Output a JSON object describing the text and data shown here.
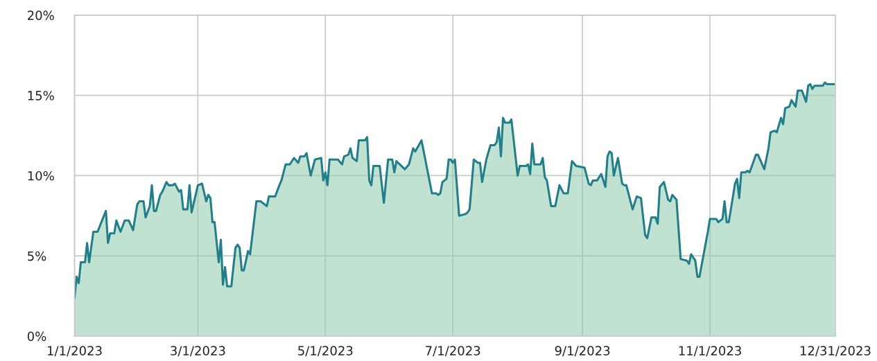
{
  "chart_data": {
    "type": "area",
    "x": [
      "2023-01-01",
      "2023-01-02",
      "2023-01-03",
      "2023-01-04",
      "2023-01-06",
      "2023-01-07",
      "2023-01-08",
      "2023-01-10",
      "2023-01-12",
      "2023-01-16",
      "2023-01-17",
      "2023-01-18",
      "2023-01-20",
      "2023-01-21",
      "2023-01-23",
      "2023-01-25",
      "2023-01-27",
      "2023-01-29",
      "2023-01-31",
      "2023-02-01",
      "2023-02-03",
      "2023-02-04",
      "2023-02-06",
      "2023-02-07",
      "2023-02-08",
      "2023-02-09",
      "2023-02-11",
      "2023-02-12",
      "2023-02-14",
      "2023-02-15",
      "2023-02-17",
      "2023-02-18",
      "2023-02-20",
      "2023-02-21",
      "2023-02-22",
      "2023-02-24",
      "2023-02-25",
      "2023-02-26",
      "2023-03-01",
      "2023-03-03",
      "2023-03-05",
      "2023-03-06",
      "2023-03-07",
      "2023-03-08",
      "2023-03-09",
      "2023-03-11",
      "2023-03-12",
      "2023-03-13",
      "2023-03-14",
      "2023-03-15",
      "2023-03-17",
      "2023-03-19",
      "2023-03-20",
      "2023-03-21",
      "2023-03-22",
      "2023-03-23",
      "2023-03-25",
      "2023-03-26",
      "2023-03-29",
      "2023-03-31",
      "2023-04-03",
      "2023-04-04",
      "2023-04-07",
      "2023-04-09",
      "2023-04-10",
      "2023-04-12",
      "2023-04-14",
      "2023-04-16",
      "2023-04-18",
      "2023-04-19",
      "2023-04-21",
      "2023-04-22",
      "2023-04-24",
      "2023-04-26",
      "2023-04-29",
      "2023-04-30",
      "2023-05-01",
      "2023-05-02",
      "2023-05-03",
      "2023-05-07",
      "2023-05-09",
      "2023-05-10",
      "2023-05-12",
      "2023-05-13",
      "2023-05-14",
      "2023-05-16",
      "2023-05-17",
      "2023-05-20",
      "2023-05-21",
      "2023-05-22",
      "2023-05-23",
      "2023-05-24",
      "2023-05-27",
      "2023-05-29",
      "2023-05-31",
      "2023-06-02",
      "2023-06-03",
      "2023-06-04",
      "2023-06-08",
      "2023-06-10",
      "2023-06-12",
      "2023-06-13",
      "2023-06-16",
      "2023-06-21",
      "2023-06-23",
      "2023-06-24",
      "2023-06-25",
      "2023-06-26",
      "2023-06-28",
      "2023-06-29",
      "2023-06-30",
      "2023-07-01",
      "2023-07-02",
      "2023-07-04",
      "2023-07-07",
      "2023-07-08",
      "2023-07-09",
      "2023-07-11",
      "2023-07-13",
      "2023-07-14",
      "2023-07-15",
      "2023-07-17",
      "2023-07-19",
      "2023-07-21",
      "2023-07-22",
      "2023-07-23",
      "2023-07-24",
      "2023-07-25",
      "2023-07-26",
      "2023-07-28",
      "2023-07-29",
      "2023-08-01",
      "2023-08-02",
      "2023-08-05",
      "2023-08-06",
      "2023-08-07",
      "2023-08-08",
      "2023-08-09",
      "2023-08-12",
      "2023-08-13",
      "2023-08-14",
      "2023-08-15",
      "2023-08-17",
      "2023-08-19",
      "2023-08-21",
      "2023-08-23",
      "2023-08-25",
      "2023-08-27",
      "2023-08-29",
      "2023-09-02",
      "2023-09-04",
      "2023-09-05",
      "2023-09-06",
      "2023-09-08",
      "2023-09-10",
      "2023-09-12",
      "2023-09-13",
      "2023-09-14",
      "2023-09-15",
      "2023-09-16",
      "2023-09-18",
      "2023-09-20",
      "2023-09-21",
      "2023-09-22",
      "2023-09-25",
      "2023-09-27",
      "2023-09-29",
      "2023-10-01",
      "2023-10-02",
      "2023-10-04",
      "2023-10-06",
      "2023-10-07",
      "2023-10-08",
      "2023-10-10",
      "2023-10-12",
      "2023-10-13",
      "2023-10-14",
      "2023-10-16",
      "2023-10-18",
      "2023-10-21",
      "2023-10-22",
      "2023-10-23",
      "2023-10-25",
      "2023-10-26",
      "2023-10-27",
      "2023-10-31",
      "2023-11-01",
      "2023-11-03",
      "2023-11-04",
      "2023-11-05",
      "2023-11-07",
      "2023-11-08",
      "2023-11-09",
      "2023-11-10",
      "2023-11-13",
      "2023-11-14",
      "2023-11-15",
      "2023-11-16",
      "2023-11-18",
      "2023-11-19",
      "2023-11-20",
      "2023-11-23",
      "2023-11-24",
      "2023-11-27",
      "2023-11-29",
      "2023-11-30",
      "2023-12-02",
      "2023-12-03",
      "2023-12-05",
      "2023-12-06",
      "2023-12-07",
      "2023-12-09",
      "2023-12-10",
      "2023-12-12",
      "2023-12-13",
      "2023-12-15",
      "2023-12-17",
      "2023-12-18",
      "2023-12-19",
      "2023-12-20",
      "2023-12-21",
      "2023-12-25",
      "2023-12-26",
      "2023-12-27",
      "2023-12-31"
    ],
    "series": [
      {
        "color": "#1f7f8a",
        "values": [
          2.4,
          3.7,
          3.3,
          4.6,
          4.6,
          5.8,
          4.6,
          6.5,
          6.5,
          7.8,
          5.8,
          6.4,
          6.4,
          7.2,
          6.5,
          7.2,
          7.2,
          6.6,
          8.2,
          8.4,
          8.4,
          7.4,
          8.1,
          9.4,
          7.8,
          7.8,
          8.8,
          9.0,
          9.6,
          9.4,
          9.4,
          9.5,
          9.0,
          9.1,
          7.9,
          7.9,
          9.4,
          7.7,
          9.4,
          9.5,
          8.4,
          8.8,
          8.6,
          7.1,
          7.1,
          4.6,
          6.0,
          3.2,
          4.3,
          3.1,
          3.1,
          5.5,
          5.7,
          5.5,
          4.1,
          4.1,
          5.3,
          5.1,
          8.4,
          8.4,
          8.1,
          8.7,
          8.7,
          9.4,
          9.7,
          10.7,
          10.7,
          11.1,
          10.8,
          11.2,
          11.2,
          11.4,
          10.0,
          11.0,
          11.1,
          9.7,
          10.2,
          9.4,
          11.0,
          11.0,
          10.7,
          11.2,
          11.3,
          11.7,
          11.1,
          10.9,
          12.2,
          12.2,
          12.4,
          9.7,
          9.4,
          10.6,
          10.6,
          8.3,
          11.0,
          11.0,
          10.2,
          10.9,
          10.4,
          10.7,
          11.7,
          11.5,
          12.2,
          8.9,
          8.9,
          8.8,
          8.9,
          9.6,
          9.8,
          11.0,
          11.0,
          10.8,
          11.0,
          7.5,
          7.6,
          7.7,
          7.9,
          11.0,
          10.8,
          10.8,
          9.6,
          11.0,
          11.9,
          11.9,
          12.1,
          13.0,
          11.2,
          13.6,
          13.3,
          13.3,
          13.5,
          10.0,
          10.6,
          10.6,
          10.7,
          10.1,
          12.0,
          10.7,
          10.7,
          11.1,
          9.9,
          9.7,
          8.1,
          8.1,
          9.4,
          8.9,
          8.9,
          10.9,
          10.6,
          10.5,
          9.5,
          9.4,
          9.7,
          9.7,
          10.1,
          9.3,
          11.2,
          11.5,
          11.4,
          10.0,
          11.1,
          9.5,
          9.4,
          9.4,
          7.9,
          8.7,
          8.6,
          6.3,
          6.1,
          7.4,
          7.4,
          7.0,
          9.3,
          9.6,
          8.5,
          8.4,
          8.8,
          8.5,
          4.8,
          4.7,
          4.5,
          5.1,
          4.7,
          3.7,
          3.7,
          6.5,
          7.3,
          7.3,
          7.3,
          7.1,
          7.3,
          8.4,
          7.1,
          7.1,
          9.5,
          9.8,
          8.6,
          10.2,
          10.2,
          10.3,
          10.2,
          11.3,
          11.3,
          10.4,
          11.7,
          12.7,
          12.8,
          12.7,
          13.6,
          13.2,
          14.2,
          14.3,
          14.7,
          14.3,
          15.3,
          15.3,
          14.6,
          15.6,
          15.7,
          15.4,
          15.6,
          15.6,
          15.8,
          15.7,
          15.7
        ]
      }
    ],
    "xlim": [
      "2023-01-01",
      "2023-12-31"
    ],
    "xticks": [
      {
        "value": "2023-01-01",
        "label": "1/1/2023"
      },
      {
        "value": "2023-03-01",
        "label": "3/1/2023"
      },
      {
        "value": "2023-05-01",
        "label": "5/1/2023"
      },
      {
        "value": "2023-07-01",
        "label": "7/1/2023"
      },
      {
        "value": "2023-09-01",
        "label": "9/1/2023"
      },
      {
        "value": "2023-11-01",
        "label": "11/1/2023"
      },
      {
        "value": "2023-12-31",
        "label": "12/31/2023"
      }
    ],
    "ylim": [
      0,
      20
    ],
    "yticks": [
      {
        "value": 0,
        "label": "0%"
      },
      {
        "value": 5,
        "label": "5%"
      },
      {
        "value": 10,
        "label": "10%"
      },
      {
        "value": 15,
        "label": "15%"
      },
      {
        "value": 20,
        "label": "20%"
      }
    ],
    "grid": true
  }
}
